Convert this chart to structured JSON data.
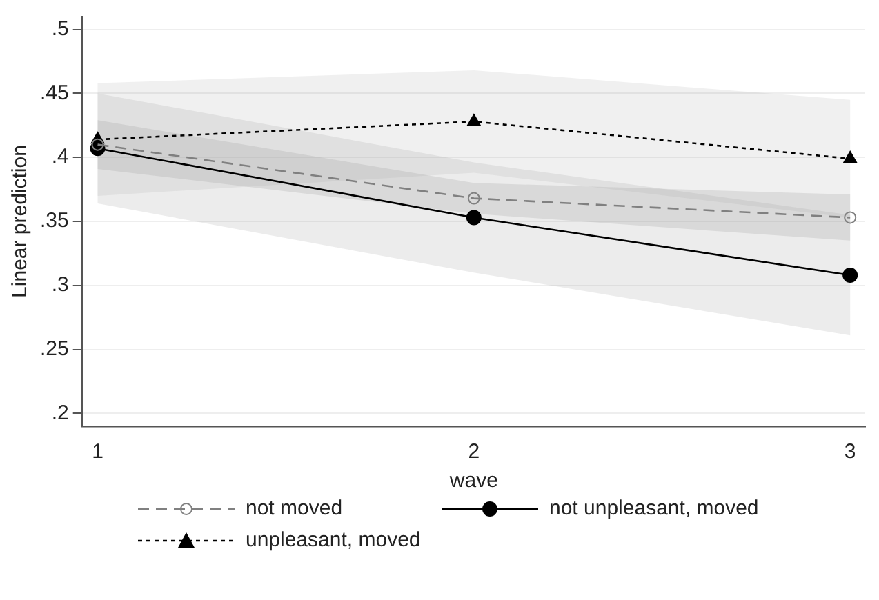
{
  "chart_data": {
    "type": "line",
    "xlabel": "wave",
    "ylabel": "Linear prediction",
    "x": [
      1,
      2,
      3
    ],
    "xlim": [
      0.96,
      3.04
    ],
    "xticks": [
      1,
      2,
      3
    ],
    "ylim": [
      0.19,
      0.51
    ],
    "yticks": [
      {
        "value": 0.2,
        "label": ".2"
      },
      {
        "value": 0.25,
        "label": ".25"
      },
      {
        "value": 0.3,
        "label": ".3"
      },
      {
        "value": 0.35,
        "label": ".35"
      },
      {
        "value": 0.4,
        "label": ".4"
      },
      {
        "value": 0.45,
        "label": ".45"
      },
      {
        "value": 0.5,
        "label": ".5"
      }
    ],
    "grid": "y",
    "legend": "bottom",
    "series": [
      {
        "name": "not moved",
        "color": "#808080",
        "values": [
          0.41,
          0.368,
          0.353
        ],
        "lower": [
          0.391,
          0.356,
          0.335
        ],
        "upper": [
          0.429,
          0.38,
          0.371
        ],
        "marker": "circle",
        "line_style": "dashed"
      },
      {
        "name": "not unpleasant, moved",
        "color": "#000000",
        "values": [
          0.407,
          0.353,
          0.308
        ],
        "lower": [
          0.364,
          0.31,
          0.261
        ],
        "upper": [
          0.45,
          0.396,
          0.355
        ],
        "marker": "circle",
        "line_style": "solid"
      },
      {
        "name": "unpleasant, moved",
        "color": "#000000",
        "values": [
          0.414,
          0.428,
          0.399
        ],
        "lower": [
          0.37,
          0.388,
          0.353
        ],
        "upper": [
          0.458,
          0.468,
          0.445
        ],
        "marker": "triangle",
        "line_style": "dotted"
      }
    ]
  }
}
